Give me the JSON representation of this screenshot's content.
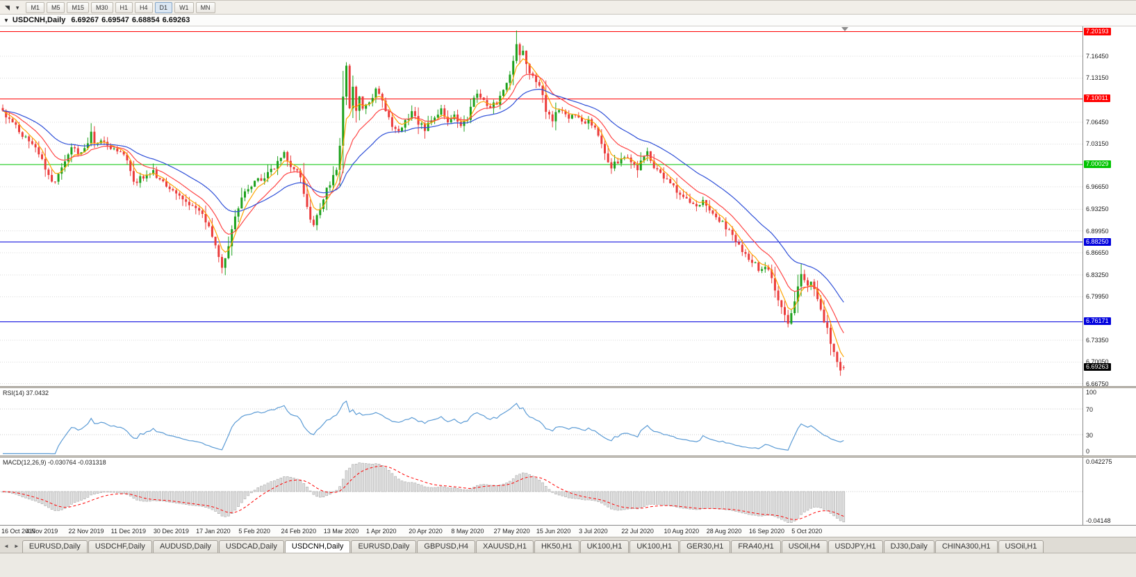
{
  "icons": {
    "chart_shift": "◥",
    "dropdown": "▾",
    "collapse": "▼",
    "tab_nav_left": "◄",
    "tab_nav_right": "►"
  },
  "toolbar": {
    "timeframes": [
      "M1",
      "M5",
      "M15",
      "M30",
      "H1",
      "H4",
      "D1",
      "W1",
      "MN"
    ],
    "active_timeframe": "D1"
  },
  "chart": {
    "title": "USDCNH,Daily",
    "ohlc": {
      "open": "6.69267",
      "high": "6.69547",
      "low": "6.68854",
      "close": "6.69263"
    },
    "axis_ticks": [
      {
        "label": "7.16450",
        "price": 7.1645
      },
      {
        "label": "7.13150",
        "price": 7.1315
      },
      {
        "label": "7.06450",
        "price": 7.0645
      },
      {
        "label": "7.03150",
        "price": 7.0315
      },
      {
        "label": "6.96650",
        "price": 6.9665
      },
      {
        "label": "6.93250",
        "price": 6.9325
      },
      {
        "label": "6.89950",
        "price": 6.8995
      },
      {
        "label": "6.86650",
        "price": 6.8665
      },
      {
        "label": "6.83250",
        "price": 6.8325
      },
      {
        "label": "6.79950",
        "price": 6.7995
      },
      {
        "label": "6.73350",
        "price": 6.7335
      },
      {
        "label": "6.70050",
        "price": 6.7005
      },
      {
        "label": "6.66750",
        "price": 6.6675
      }
    ],
    "levels": [
      {
        "label": "7.20193",
        "price": 7.20193,
        "color": "#ff0000"
      },
      {
        "label": "7.10011",
        "price": 7.10011,
        "color": "#ff0000"
      },
      {
        "label": "7.00029",
        "price": 7.00029,
        "color": "#00c400"
      },
      {
        "label": "6.88250",
        "price": 6.8825,
        "color": "#0000dd"
      },
      {
        "label": "6.76171",
        "price": 6.76171,
        "color": "#0000dd"
      }
    ],
    "current_price": {
      "label": "6.69263",
      "price": 6.69263,
      "color": "#000000"
    }
  },
  "chart_data": {
    "type": "candlestick",
    "symbol": "USDCNH",
    "timeframe": "Daily",
    "price_range": {
      "top": 7.21,
      "bottom": 6.664
    },
    "total_bars": 258,
    "bars_per_label": 13,
    "x_labels": [
      "16 Oct 2019",
      "4 Nov 2019",
      "22 Nov 2019",
      "11 Dec 2019",
      "30 Dec 2019",
      "17 Jan 2020",
      "5 Feb 2020",
      "24 Feb 2020",
      "13 Mar 2020",
      "1 Apr 2020",
      "20 Apr 2020",
      "8 May 2020",
      "27 May 2020",
      "15 Jun 2020",
      "3 Jul 2020",
      "22 Jul 2020",
      "10 Aug 2020",
      "28 Aug 2020",
      "16 Sep 2020",
      "5 Oct 2020"
    ],
    "close_waypoints": [
      [
        0,
        7.082
      ],
      [
        3,
        7.062
      ],
      [
        6,
        7.045
      ],
      [
        9,
        7.032
      ],
      [
        12,
        7.01
      ],
      [
        14,
        6.98
      ],
      [
        16,
        6.972
      ],
      [
        18,
        7.0
      ],
      [
        21,
        7.025
      ],
      [
        24,
        7.018
      ],
      [
        26,
        7.03
      ],
      [
        27,
        7.052
      ],
      [
        28,
        7.03
      ],
      [
        31,
        7.035
      ],
      [
        34,
        7.024
      ],
      [
        37,
        7.018
      ],
      [
        39,
        6.992
      ],
      [
        40,
        6.972
      ],
      [
        43,
        6.982
      ],
      [
        46,
        6.988
      ],
      [
        49,
        6.975
      ],
      [
        52,
        6.962
      ],
      [
        55,
        6.95
      ],
      [
        58,
        6.938
      ],
      [
        60,
        6.93
      ],
      [
        62,
        6.915
      ],
      [
        64,
        6.89
      ],
      [
        66,
        6.862
      ],
      [
        67,
        6.845
      ],
      [
        68,
        6.856
      ],
      [
        70,
        6.9
      ],
      [
        72,
        6.938
      ],
      [
        74,
        6.958
      ],
      [
        76,
        6.968
      ],
      [
        78,
        6.975
      ],
      [
        80,
        6.982
      ],
      [
        82,
        6.992
      ],
      [
        84,
        7.002
      ],
      [
        86,
        7.015
      ],
      [
        88,
        7.0
      ],
      [
        90,
        6.99
      ],
      [
        91,
        6.978
      ],
      [
        92,
        6.955
      ],
      [
        93,
        6.935
      ],
      [
        94,
        6.915
      ],
      [
        95,
        6.905
      ],
      [
        96,
        6.92
      ],
      [
        98,
        6.95
      ],
      [
        100,
        6.972
      ],
      [
        102,
        6.992
      ],
      [
        103,
        7.03
      ],
      [
        104,
        7.105
      ],
      [
        105,
        7.152
      ],
      [
        106,
        7.088
      ],
      [
        107,
        7.118
      ],
      [
        108,
        7.078
      ],
      [
        109,
        7.102
      ],
      [
        110,
        7.085
      ],
      [
        112,
        7.098
      ],
      [
        114,
        7.112
      ],
      [
        116,
        7.1
      ],
      [
        117,
        7.085
      ],
      [
        119,
        7.06
      ],
      [
        121,
        7.048
      ],
      [
        123,
        7.068
      ],
      [
        125,
        7.08
      ],
      [
        127,
        7.062
      ],
      [
        129,
        7.055
      ],
      [
        130,
        7.065
      ],
      [
        132,
        7.075
      ],
      [
        134,
        7.082
      ],
      [
        136,
        7.068
      ],
      [
        138,
        7.075
      ],
      [
        140,
        7.06
      ],
      [
        142,
        7.072
      ],
      [
        143,
        7.092
      ],
      [
        145,
        7.112
      ],
      [
        147,
        7.096
      ],
      [
        149,
        7.085
      ],
      [
        151,
        7.095
      ],
      [
        153,
        7.11
      ],
      [
        155,
        7.135
      ],
      [
        156,
        7.155
      ],
      [
        157,
        7.185
      ],
      [
        158,
        7.168
      ],
      [
        159,
        7.175
      ],
      [
        160,
        7.15
      ],
      [
        162,
        7.135
      ],
      [
        164,
        7.122
      ],
      [
        166,
        7.082
      ],
      [
        168,
        7.07
      ],
      [
        169,
        7.076
      ],
      [
        171,
        7.082
      ],
      [
        173,
        7.068
      ],
      [
        175,
        7.075
      ],
      [
        177,
        7.062
      ],
      [
        179,
        7.068
      ],
      [
        181,
        7.058
      ],
      [
        182,
        7.045
      ],
      [
        184,
        7.015
      ],
      [
        186,
        6.998
      ],
      [
        188,
        7.005
      ],
      [
        190,
        7.012
      ],
      [
        192,
        7.002
      ],
      [
        194,
        6.996
      ],
      [
        195,
        7.005
      ],
      [
        197,
        7.018
      ],
      [
        199,
        6.998
      ],
      [
        201,
        6.988
      ],
      [
        203,
        6.975
      ],
      [
        205,
        6.965
      ],
      [
        207,
        6.958
      ],
      [
        208,
        6.952
      ],
      [
        210,
        6.945
      ],
      [
        212,
        6.938
      ],
      [
        214,
        6.945
      ],
      [
        216,
        6.932
      ],
      [
        218,
        6.922
      ],
      [
        220,
        6.912
      ],
      [
        221,
        6.905
      ],
      [
        223,
        6.892
      ],
      [
        225,
        6.878
      ],
      [
        227,
        6.865
      ],
      [
        229,
        6.855
      ],
      [
        231,
        6.842
      ],
      [
        233,
        6.848
      ],
      [
        234,
        6.838
      ],
      [
        235,
        6.825
      ],
      [
        236,
        6.812
      ],
      [
        237,
        6.798
      ],
      [
        238,
        6.785
      ],
      [
        239,
        6.775
      ],
      [
        240,
        6.762
      ],
      [
        241,
        6.772
      ],
      [
        242,
        6.795
      ],
      [
        243,
        6.815
      ],
      [
        244,
        6.832
      ],
      [
        245,
        6.825
      ],
      [
        246,
        6.818
      ],
      [
        247,
        6.822
      ],
      [
        248,
        6.81
      ],
      [
        249,
        6.795
      ],
      [
        250,
        6.778
      ],
      [
        251,
        6.762
      ],
      [
        252,
        6.748
      ],
      [
        253,
        6.732
      ],
      [
        254,
        6.718
      ],
      [
        255,
        6.702
      ],
      [
        256,
        6.688
      ],
      [
        257,
        6.6926
      ]
    ],
    "last_bar": {
      "open": 6.69267,
      "high": 6.69547,
      "low": 6.68854,
      "close": 6.69263
    },
    "moving_averages": [
      {
        "name": "ma-fast",
        "type": "ema",
        "period": 5,
        "color": "#ffa500"
      },
      {
        "name": "ma-mid",
        "type": "ema",
        "period": 13,
        "color": "#ff4545"
      },
      {
        "name": "ma-slow",
        "type": "ema",
        "period": 30,
        "color": "#2e4fd8"
      }
    ],
    "rsi": {
      "label": "RSI(14)",
      "current": "37.0432",
      "period": 14,
      "guide_levels": [
        70,
        30
      ],
      "axis_labels": [
        {
          "label": "100",
          "value": 100
        },
        {
          "label": "70",
          "value": 70
        },
        {
          "label": "30",
          "value": 30
        },
        {
          "label": "0",
          "value": 0
        }
      ],
      "color": "#5b9bd5"
    },
    "macd": {
      "label": "MACD(12,26,9)",
      "macd_value": "-0.030764",
      "signal_value": "-0.031318",
      "fast": 12,
      "slow": 26,
      "signal": 9,
      "axis_top": "0.042275",
      "axis_bottom": "-0.04148",
      "histogram_color": "#e0e0e0",
      "histogram_border": "#a8a8a8",
      "signal_color": "#ff0000"
    },
    "colors": {
      "bull": "#1ca11c",
      "bear": "#eb3b3b",
      "grid": "#d9d9d9",
      "axis_text": "#1a1a1a"
    }
  },
  "tabs": {
    "items": [
      "EURUSD,Daily",
      "USDCHF,Daily",
      "AUDUSD,Daily",
      "USDCAD,Daily",
      "USDCNH,Daily",
      "EURUSD,Daily",
      "GBPUSD,H4",
      "XAUUSD,H1",
      "HK50,H1",
      "UK100,H1",
      "UK100,H1",
      "GER30,H1",
      "FRA40,H1",
      "USOil,H4",
      "USDJPY,H1",
      "DJ30,Daily",
      "CHINA300,H1",
      "USOil,H1"
    ],
    "active_index": 4
  }
}
